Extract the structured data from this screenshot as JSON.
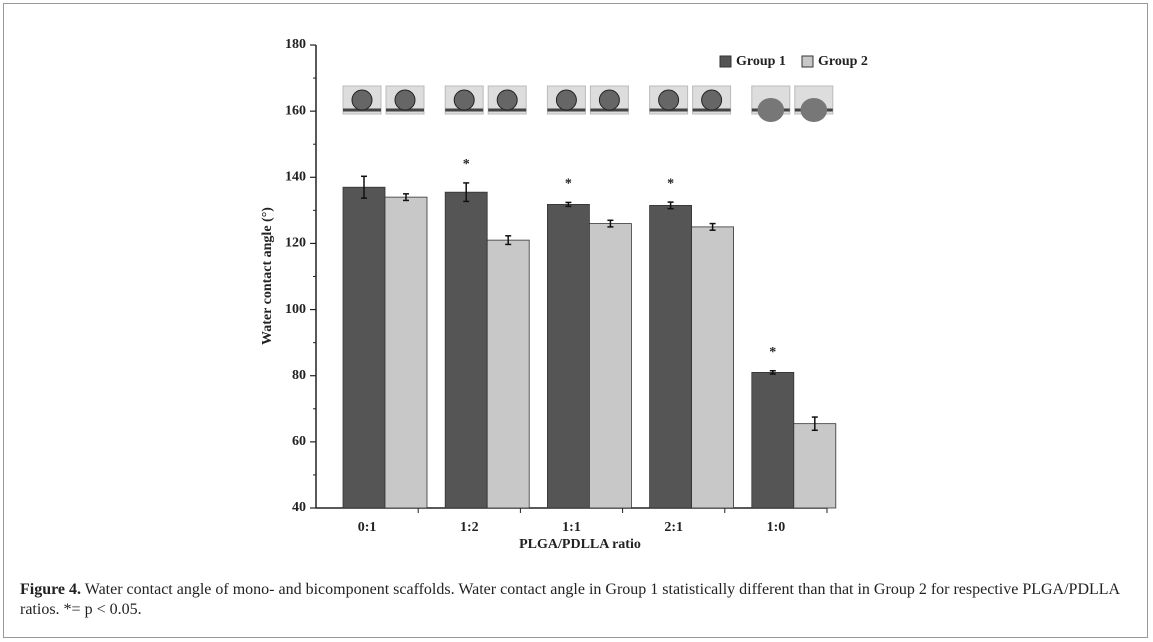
{
  "chart_data": {
    "type": "bar",
    "y_label": "Water contact angle (°)",
    "x_label": "PLGA/PDLLA ratio",
    "categories": [
      "0:1",
      "1:2",
      "1:1",
      "2:1",
      "1:0"
    ],
    "series": [
      {
        "name": "Group 1",
        "color": "#555555",
        "values": [
          137,
          135.5,
          131.8,
          131.5,
          81
        ],
        "errors": [
          3.3,
          2.8,
          0.6,
          1.0,
          0.5
        ]
      },
      {
        "name": "Group 2",
        "color": "#c8c8c8",
        "values": [
          134,
          121,
          126,
          125,
          65.5
        ],
        "errors": [
          1.0,
          1.3,
          1.0,
          1.0,
          2.0
        ]
      }
    ],
    "annotations": [
      null,
      "*",
      "*",
      "*",
      "*"
    ],
    "ylim": [
      40,
      180
    ],
    "yticks": [
      40,
      60,
      80,
      100,
      120,
      140,
      160,
      180
    ],
    "legend": "top-right"
  },
  "caption": {
    "label": "Figure 4.",
    "text": "Water contact angle of mono- and bicomponent scaffolds. Water contact angle in Group 1 statistically different than that in Group 2 for respective PLGA/PDLLA ratios. *= p < 0.05."
  }
}
